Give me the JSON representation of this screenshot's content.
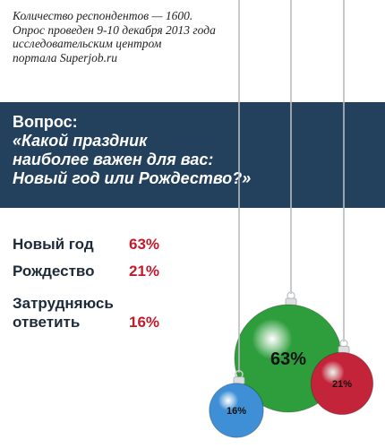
{
  "note": {
    "lines": [
      "Количество респондентов — 1600.",
      "Опрос проведен 9-10 декабря 2013 года",
      "исследовательским центром",
      "портала Superjob.ru"
    ]
  },
  "question": {
    "label": "Вопрос:",
    "lines": [
      "«Какой праздник",
      "наиболее важен для вас:",
      "Новый год или Рождество?»"
    ]
  },
  "colors": {
    "header_bg": "#23415c",
    "value_text": "#c41a2a",
    "green_ball": "#2e9e3c",
    "red_ball": "#c4243a",
    "blue_ball": "#3f8fd6"
  },
  "chart_data": {
    "type": "pie",
    "title": "«Какой праздник наиболее важен для вас: Новый год или Рождество?»",
    "categories": [
      "Новый год",
      "Рождество",
      "Затрудняюсь ответить"
    ],
    "values": [
      63,
      21,
      16
    ],
    "value_labels": [
      "63%",
      "21%",
      "16%"
    ],
    "display_lines": [
      [
        "Новый год"
      ],
      [
        "Рождество"
      ],
      [
        "Затрудняюсь",
        "ответить"
      ]
    ],
    "colors": [
      "#2e9e3c",
      "#c4243a",
      "#3f8fd6"
    ]
  }
}
